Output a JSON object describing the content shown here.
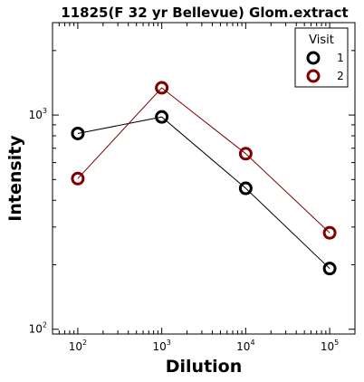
{
  "chart_data": {
    "type": "line",
    "title": "11825(F 32 yr Bellevue) Glom.extract",
    "xlabel": "Dilution",
    "ylabel": "Intensity",
    "x_scale": "log",
    "y_scale": "log",
    "xlim": [
      50,
      200000
    ],
    "ylim": [
      95,
      2700
    ],
    "x_ticks": [
      {
        "value": 100,
        "base": "10",
        "exp": "2"
      },
      {
        "value": 1000,
        "base": "10",
        "exp": "3"
      },
      {
        "value": 10000,
        "base": "10",
        "exp": "4"
      },
      {
        "value": 100000,
        "base": "10",
        "exp": "5"
      }
    ],
    "y_ticks": [
      {
        "value": 100,
        "base": "10",
        "exp": "2"
      },
      {
        "value": 1000,
        "base": "10",
        "exp": "3"
      }
    ],
    "legend": {
      "title": "Visit",
      "placement": "top-right"
    },
    "series": [
      {
        "name": "1",
        "color": "#000000",
        "x": [
          100,
          1000,
          10000,
          100000
        ],
        "y": [
          820,
          980,
          455,
          192
        ]
      },
      {
        "name": "2",
        "color": "#7f0000",
        "x": [
          100,
          1000,
          10000,
          100000
        ],
        "y": [
          505,
          1340,
          660,
          282
        ]
      }
    ]
  }
}
